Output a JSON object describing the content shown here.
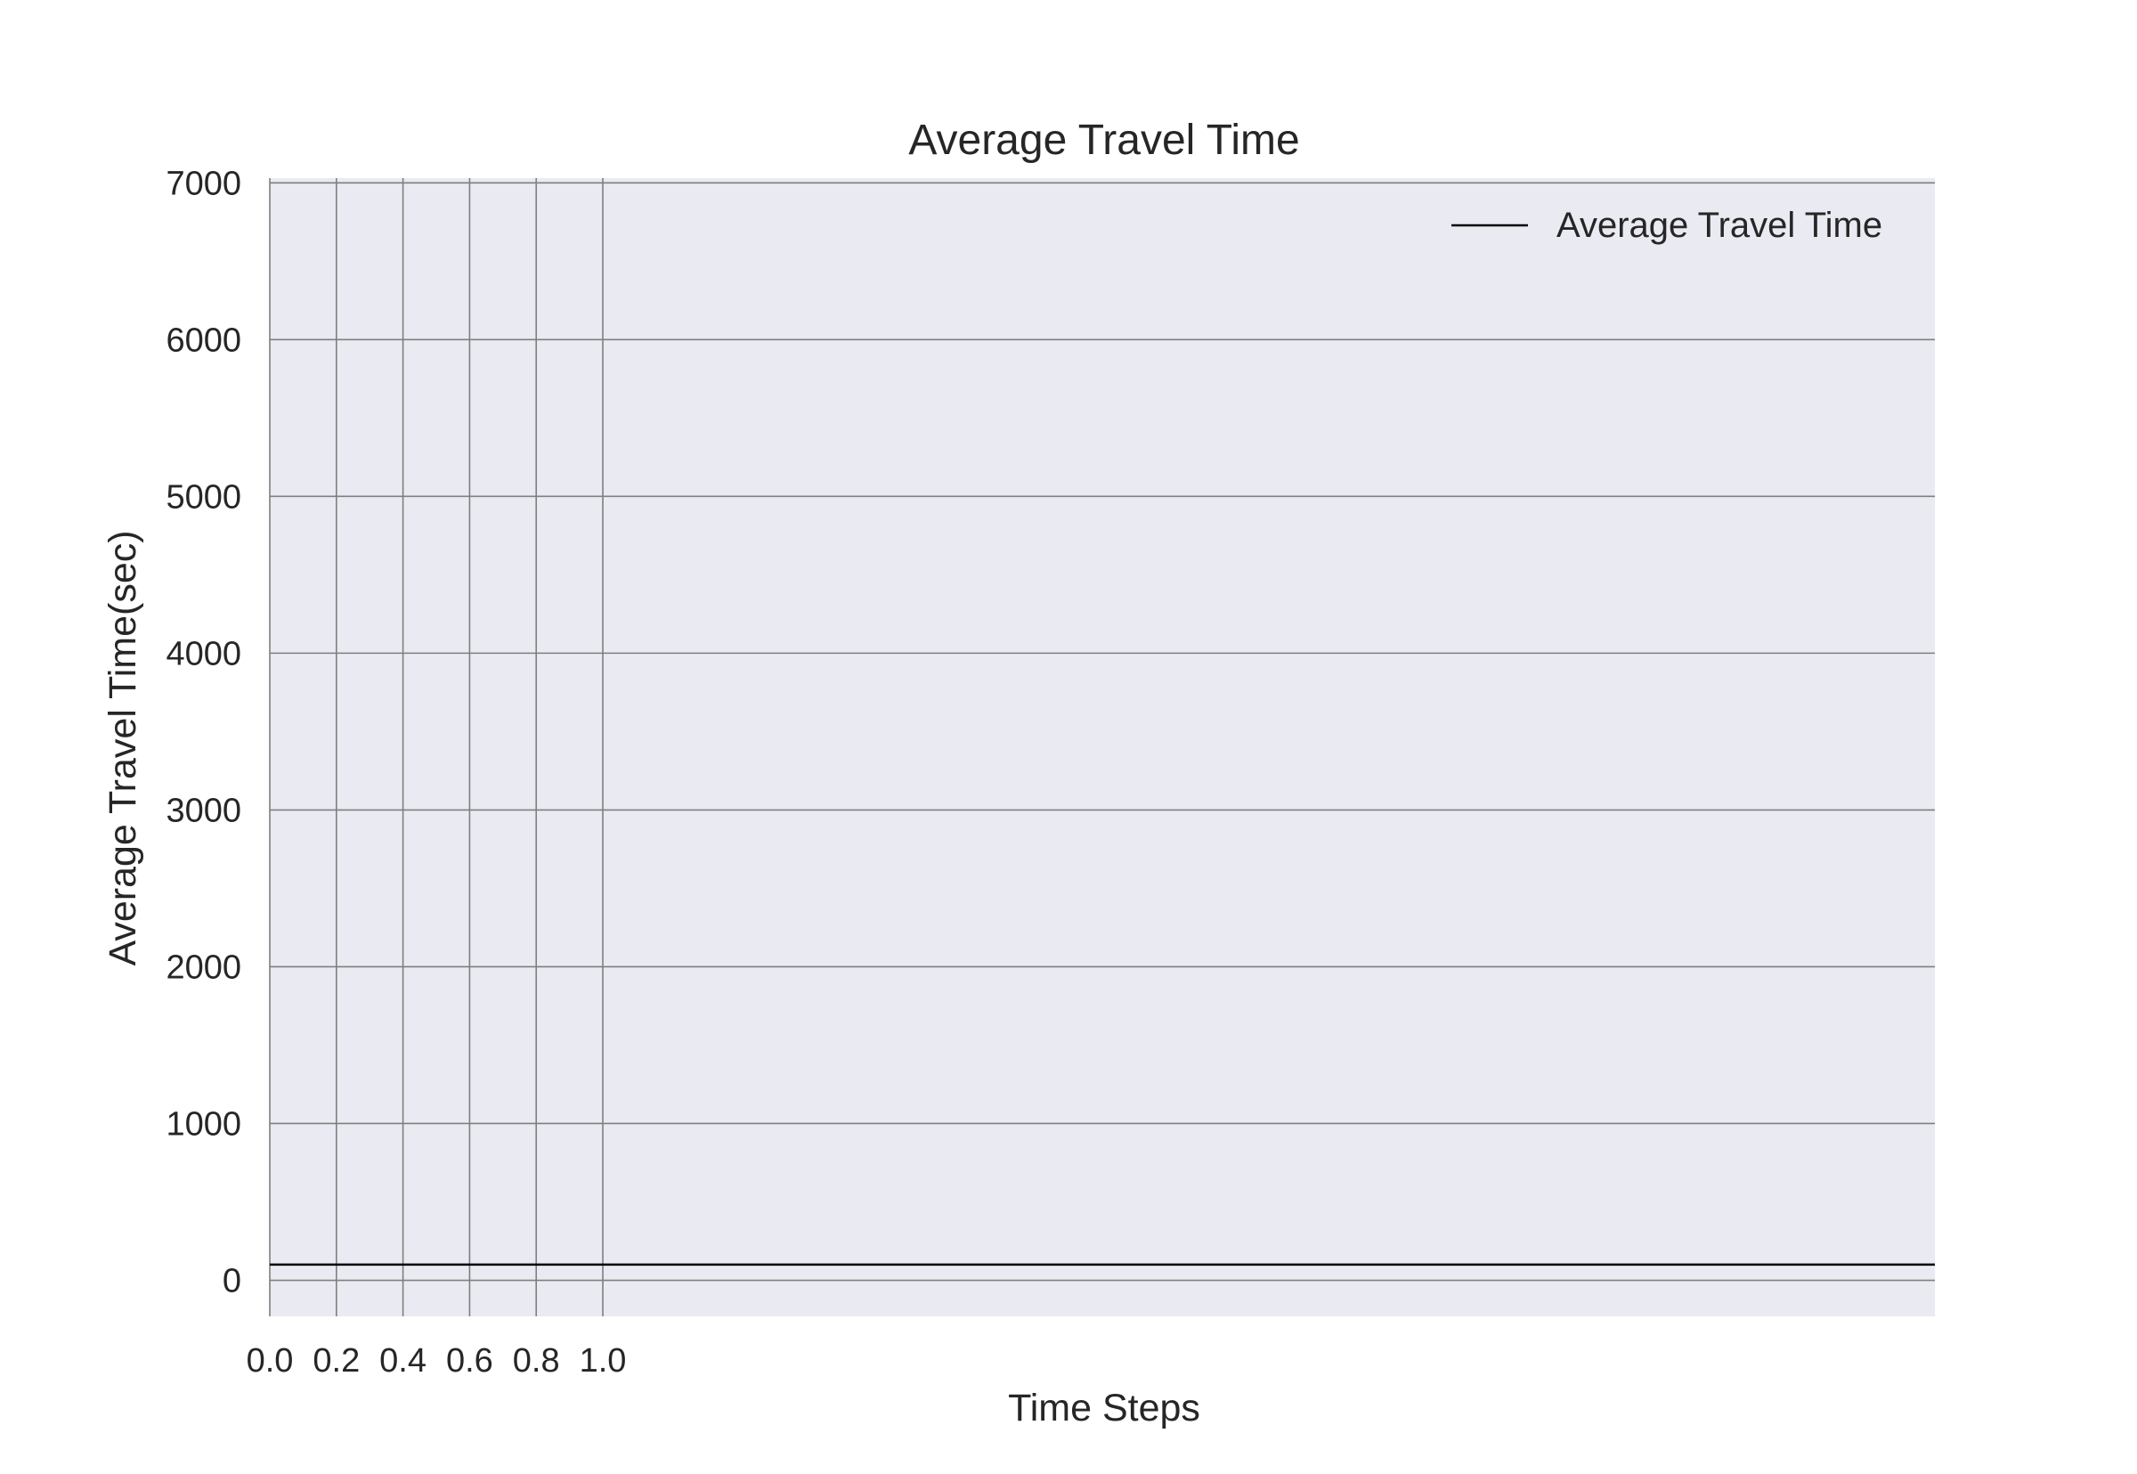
{
  "chart_data": {
    "type": "line",
    "title": "Average Travel Time",
    "xlabel": "Time Steps",
    "ylabel": "Average Travel Time(sec)",
    "xlim": [
      0.0,
      5.0
    ],
    "ylim": [
      -230,
      7030
    ],
    "x_ticks": [
      0.0,
      0.2,
      0.4,
      0.6,
      0.8,
      1.0
    ],
    "x_tick_labels": [
      "0.0",
      "0.2",
      "0.4",
      "0.6",
      "0.8",
      "1.0"
    ],
    "y_ticks": [
      0,
      1000,
      2000,
      3000,
      4000,
      5000,
      6000,
      7000
    ],
    "y_tick_labels": [
      "0",
      "1000",
      "2000",
      "3000",
      "4000",
      "5000",
      "6000",
      "7000"
    ],
    "grid": true,
    "legend_position": "top-right",
    "series": [
      {
        "name": "Average Travel Time",
        "color": "#000000",
        "x": [
          0.0,
          5.0
        ],
        "y": [
          100,
          100
        ]
      }
    ]
  },
  "colors": {
    "plot_background": "#eaeaf2",
    "grid": "#7f7f7f",
    "text": "#262626"
  }
}
